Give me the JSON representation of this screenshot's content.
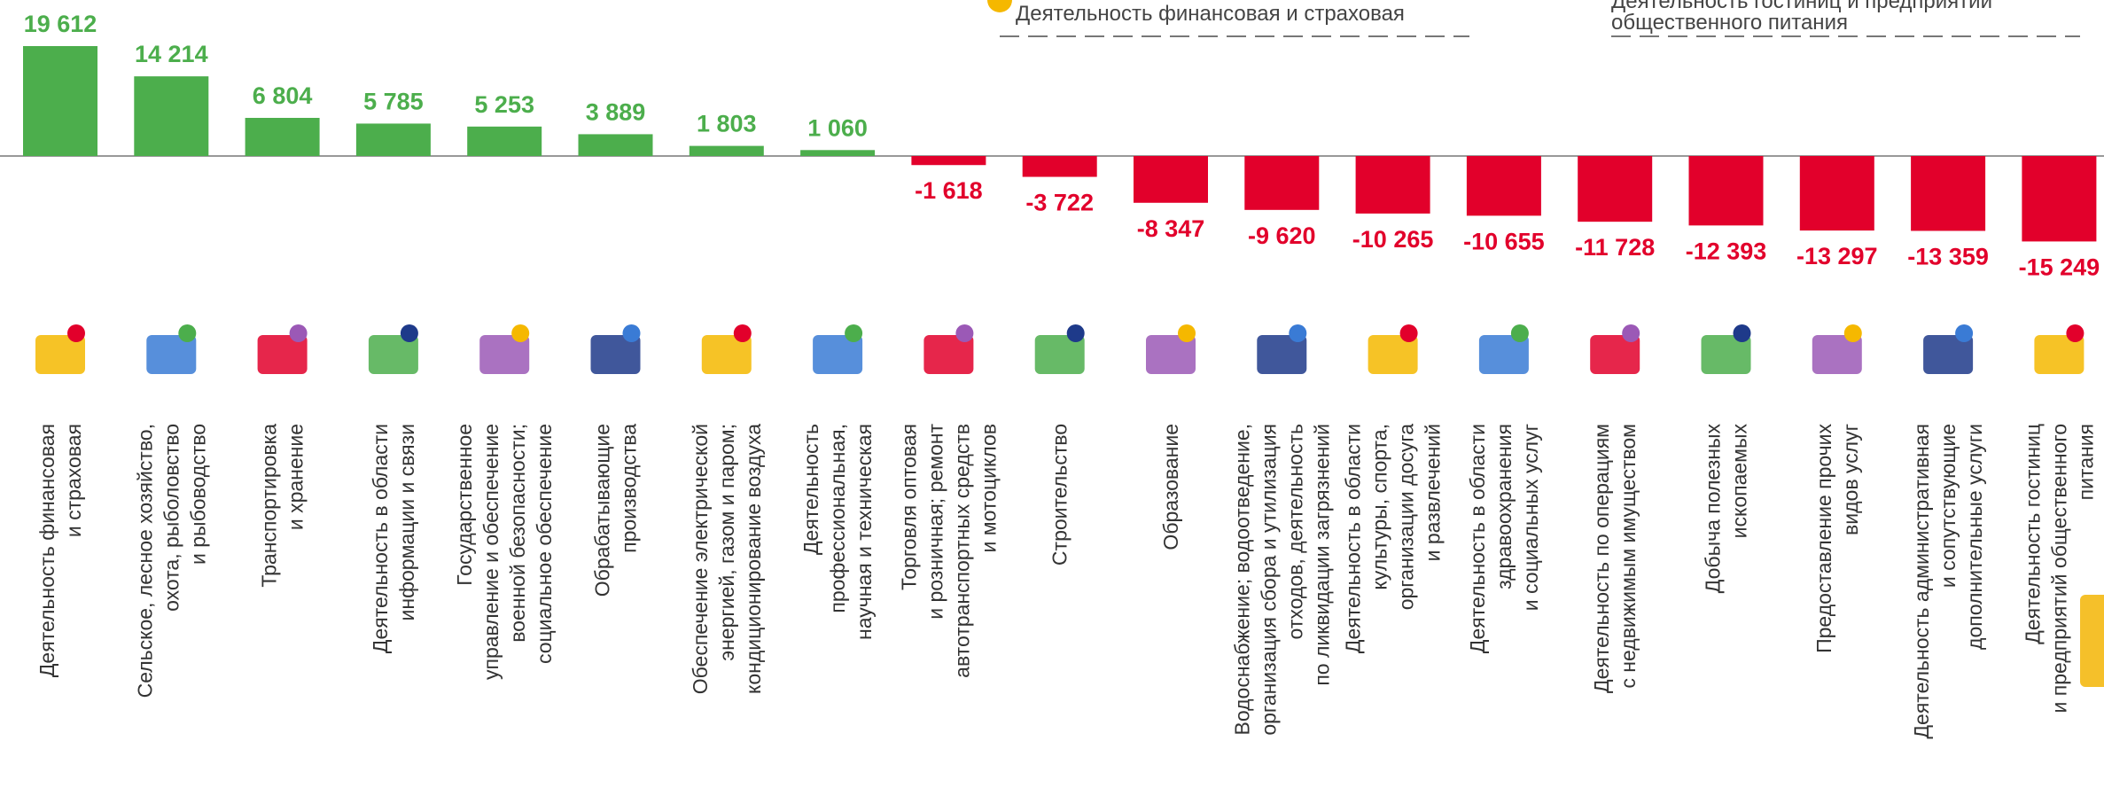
{
  "chart_data": {
    "type": "bar",
    "annotations": [
      [
        "Деятельность финансовая и страховая"
      ],
      [
        "Деятельность  гостиниц и предприятий",
        "общественного питания"
      ]
    ],
    "categories": [
      [
        "Деятельность финансовая",
        "и страховая"
      ],
      [
        "Сельское, лесное хозяйство,",
        "охота, рыболовство",
        "и рыбоводство"
      ],
      [
        "Транспортировка",
        "и хранение"
      ],
      [
        "Деятельность в области",
        "информации и связи"
      ],
      [
        "Государственное",
        "управление и обеспечение",
        "военной безопасности;",
        "социальное обеспечение"
      ],
      [
        "Обрабатывающие",
        "производства"
      ],
      [
        "Обеспечение электрической",
        "энергией, газом и паром;",
        "кондиционирование воздуха"
      ],
      [
        "Деятельность",
        "профессиональная,",
        "научная и техническая"
      ],
      [
        "Торговля оптовая",
        "и розничная; ремонт",
        "автотранспортных средств",
        "и мотоциклов"
      ],
      [
        "Строительство"
      ],
      [
        "Образование"
      ],
      [
        "Водоснабжение; водоотведение,",
        "организация сбора и утилизация",
        "отходов, деятельность",
        "по ликвидации загрязнений"
      ],
      [
        "Деятельность в области",
        "культуры, спорта,",
        "организации досуга",
        "и развлечений"
      ],
      [
        "Деятельность в области",
        "здравоохранения",
        "и социальных услуг"
      ],
      [
        "Деятельность по операциям",
        "с недвижимым имуществом"
      ],
      [
        "Добыча полезных",
        "ископаемых"
      ],
      [
        "Предоставление прочих",
        "видов услуг"
      ],
      [
        "Деятельность административная",
        "и сопутствующие",
        "дополнительные услуги"
      ],
      [
        "Деятельность гостиниц",
        "и предприятий общественного",
        "питания"
      ]
    ],
    "values": [
      19612,
      14214,
      6804,
      5785,
      5253,
      3889,
      1803,
      1060,
      -1618,
      -3722,
      -8347,
      -9620,
      -10265,
      -10655,
      -11728,
      -12393,
      -13297,
      -13359,
      -15249
    ],
    "value_labels": [
      "19 612",
      "14 214",
      "6 804",
      "5 785",
      "5 253",
      "3 889",
      "1 803",
      "1 060",
      "-1 618",
      "-3 722",
      "-8 347",
      "-9 620",
      "-10 265",
      "-10 655",
      "-11 728",
      "-12 393",
      "-13 297",
      "-13 359",
      "-15 249"
    ],
    "positive_color": "#4cae4c",
    "negative_color": "#e2002b"
  }
}
